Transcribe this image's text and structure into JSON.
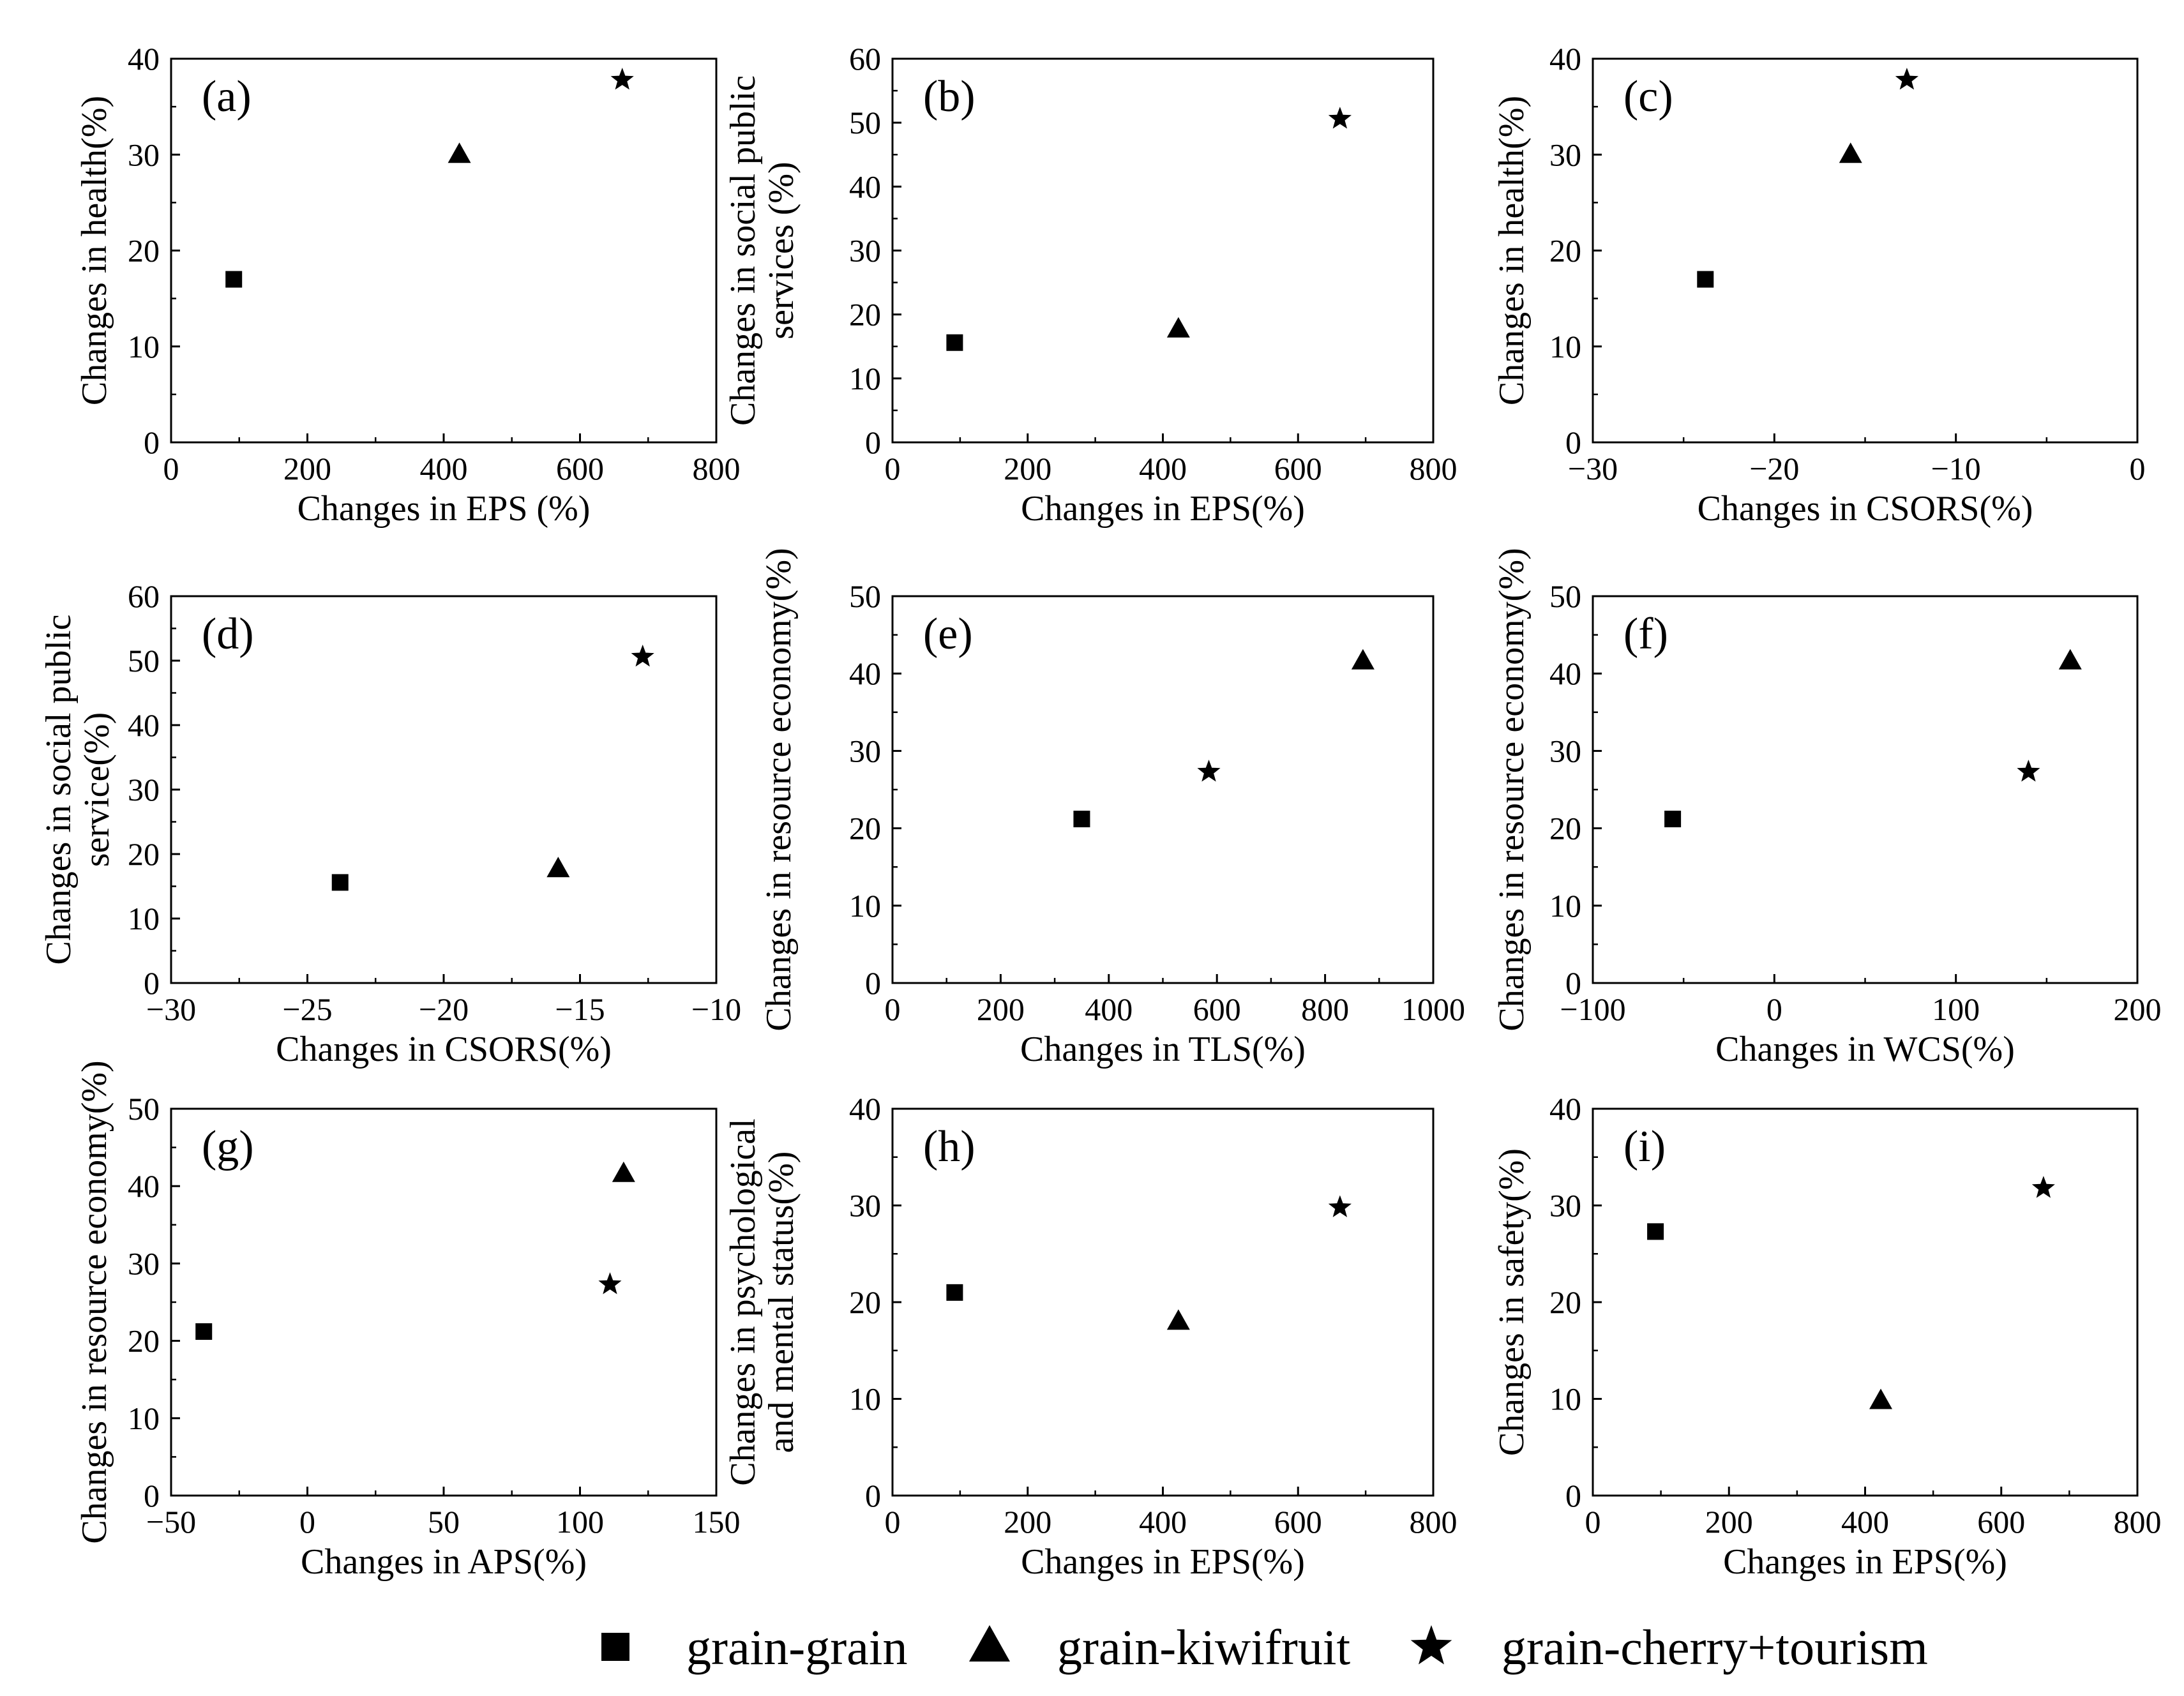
{
  "legend": {
    "items": [
      {
        "name": "grain-grain",
        "marker": "square"
      },
      {
        "name": "grain-kiwifruit",
        "marker": "triangle"
      },
      {
        "name": "grain-cherry+tourism",
        "marker": "star"
      }
    ]
  },
  "chart_data": [
    {
      "type": "scatter",
      "panel": "(a)",
      "xlabel": "Changes in EPS (%)",
      "ylabel": [
        "Changes in health(%)"
      ],
      "xlim": [
        0,
        800
      ],
      "ylim": [
        0,
        40
      ],
      "xticks": [
        0,
        200,
        400,
        600,
        800
      ],
      "xtick_labels": [
        "0",
        "200",
        "400",
        "600",
        "800"
      ],
      "yticks": [
        0,
        10,
        20,
        30,
        40
      ],
      "ytick_labels": [
        "0",
        "10",
        "20",
        "30",
        "40"
      ],
      "series": [
        {
          "name": "grain-grain",
          "marker": "square",
          "x": 92,
          "y": 17
        },
        {
          "name": "grain-kiwifruit",
          "marker": "triangle",
          "x": 423,
          "y": 30
        },
        {
          "name": "grain-cherry+tourism",
          "marker": "star",
          "x": 662,
          "y": 37.8
        }
      ]
    },
    {
      "type": "scatter",
      "panel": "(b)",
      "xlabel": "Changes in EPS(%)",
      "ylabel": [
        "Changes in social public",
        "services (%)"
      ],
      "xlim": [
        0,
        800
      ],
      "ylim": [
        0,
        60
      ],
      "xticks": [
        0,
        200,
        400,
        600,
        800
      ],
      "xtick_labels": [
        "0",
        "200",
        "400",
        "600",
        "800"
      ],
      "yticks": [
        0,
        10,
        20,
        30,
        40,
        50,
        60
      ],
      "ytick_labels": [
        "0",
        "10",
        "20",
        "30",
        "40",
        "50",
        "60"
      ],
      "series": [
        {
          "name": "grain-grain",
          "marker": "square",
          "x": 92,
          "y": 15.6
        },
        {
          "name": "grain-kiwifruit",
          "marker": "triangle",
          "x": 423,
          "y": 17.7
        },
        {
          "name": "grain-cherry+tourism",
          "marker": "star",
          "x": 662,
          "y": 50.6
        }
      ]
    },
    {
      "type": "scatter",
      "panel": "(c)",
      "xlabel": "Changes in CSORS(%)",
      "ylabel": [
        "Changes in health(%)"
      ],
      "xlim": [
        -30,
        0
      ],
      "ylim": [
        0,
        40
      ],
      "xticks": [
        -30,
        -20,
        -10,
        0
      ],
      "xtick_labels": [
        "−30",
        "−20",
        "−10",
        "0"
      ],
      "yticks": [
        0,
        10,
        20,
        30,
        40
      ],
      "ytick_labels": [
        "0",
        "10",
        "20",
        "30",
        "40"
      ],
      "series": [
        {
          "name": "grain-grain",
          "marker": "square",
          "x": -23.8,
          "y": 17
        },
        {
          "name": "grain-kiwifruit",
          "marker": "triangle",
          "x": -15.8,
          "y": 30
        },
        {
          "name": "grain-cherry+tourism",
          "marker": "star",
          "x": -12.7,
          "y": 37.8
        }
      ]
    },
    {
      "type": "scatter",
      "panel": "(d)",
      "xlabel": "Changes in CSORS(%)",
      "ylabel": [
        "Changes in social public",
        "service(%)"
      ],
      "xlim": [
        -30,
        -10
      ],
      "ylim": [
        0,
        60
      ],
      "xticks": [
        -30,
        -25,
        -20,
        -15,
        -10
      ],
      "xtick_labels": [
        "−30",
        "−25",
        "−20",
        "−15",
        "−10"
      ],
      "yticks": [
        0,
        10,
        20,
        30,
        40,
        50,
        60
      ],
      "ytick_labels": [
        "0",
        "10",
        "20",
        "30",
        "40",
        "50",
        "60"
      ],
      "series": [
        {
          "name": "grain-grain",
          "marker": "square",
          "x": -23.8,
          "y": 15.6
        },
        {
          "name": "grain-kiwifruit",
          "marker": "triangle",
          "x": -15.8,
          "y": 17.7
        },
        {
          "name": "grain-cherry+tourism",
          "marker": "star",
          "x": -12.7,
          "y": 50.6
        }
      ]
    },
    {
      "type": "scatter",
      "panel": "(e)",
      "xlabel": "Changes in TLS(%)",
      "ylabel": [
        "Changes in resource economy(%)"
      ],
      "xlim": [
        0,
        1000
      ],
      "ylim": [
        0,
        50
      ],
      "xticks": [
        0,
        200,
        400,
        600,
        800,
        1000
      ],
      "xtick_labels": [
        "0",
        "200",
        "400",
        "600",
        "800",
        "1000"
      ],
      "yticks": [
        0,
        10,
        20,
        30,
        40,
        50
      ],
      "ytick_labels": [
        "0",
        "10",
        "20",
        "30",
        "40",
        "50"
      ],
      "series": [
        {
          "name": "grain-grain",
          "marker": "square",
          "x": 350,
          "y": 21.2
        },
        {
          "name": "grain-kiwifruit",
          "marker": "triangle",
          "x": 870,
          "y": 41.6
        },
        {
          "name": "grain-cherry+tourism",
          "marker": "star",
          "x": 585,
          "y": 27.3
        }
      ]
    },
    {
      "type": "scatter",
      "panel": "(f)",
      "xlabel": "Changes in WCS(%)",
      "ylabel": [
        "Changes in resource economy(%)"
      ],
      "xlim": [
        -100,
        200
      ],
      "ylim": [
        0,
        50
      ],
      "xticks": [
        -100,
        0,
        100,
        200
      ],
      "xtick_labels": [
        "−100",
        "0",
        "100",
        "200"
      ],
      "yticks": [
        0,
        10,
        20,
        30,
        40,
        50
      ],
      "ytick_labels": [
        "0",
        "10",
        "20",
        "30",
        "40",
        "50"
      ],
      "series": [
        {
          "name": "grain-grain",
          "marker": "square",
          "x": -56,
          "y": 21.2
        },
        {
          "name": "grain-kiwifruit",
          "marker": "triangle",
          "x": 163,
          "y": 41.6
        },
        {
          "name": "grain-cherry+tourism",
          "marker": "star",
          "x": 140,
          "y": 27.3
        }
      ]
    },
    {
      "type": "scatter",
      "panel": "(g)",
      "xlabel": "Changes in APS(%)",
      "ylabel": [
        "Changes in resource economy(%)"
      ],
      "xlim": [
        -50,
        150
      ],
      "ylim": [
        0,
        50
      ],
      "xticks": [
        -50,
        0,
        50,
        100,
        150
      ],
      "xtick_labels": [
        "−50",
        "0",
        "50",
        "100",
        "150"
      ],
      "yticks": [
        0,
        10,
        20,
        30,
        40,
        50
      ],
      "ytick_labels": [
        "0",
        "10",
        "20",
        "30",
        "40",
        "50"
      ],
      "series": [
        {
          "name": "grain-grain",
          "marker": "square",
          "x": -38,
          "y": 21.2
        },
        {
          "name": "grain-kiwifruit",
          "marker": "triangle",
          "x": 116,
          "y": 41.6
        },
        {
          "name": "grain-cherry+tourism",
          "marker": "star",
          "x": 111,
          "y": 27.3
        }
      ]
    },
    {
      "type": "scatter",
      "panel": "(h)",
      "xlabel": "Changes in EPS(%)",
      "ylabel": [
        "Changes in psychological",
        "and  mental status(%)"
      ],
      "xlim": [
        0,
        800
      ],
      "ylim": [
        0,
        40
      ],
      "xticks": [
        0,
        200,
        400,
        600,
        800
      ],
      "xtick_labels": [
        "0",
        "200",
        "400",
        "600",
        "800"
      ],
      "yticks": [
        0,
        10,
        20,
        30,
        40
      ],
      "ytick_labels": [
        "0",
        "10",
        "20",
        "30",
        "40"
      ],
      "series": [
        {
          "name": "grain-grain",
          "marker": "square",
          "x": 92,
          "y": 21
        },
        {
          "name": "grain-kiwifruit",
          "marker": "triangle",
          "x": 423,
          "y": 18
        },
        {
          "name": "grain-cherry+tourism",
          "marker": "star",
          "x": 662,
          "y": 29.8
        }
      ]
    },
    {
      "type": "scatter",
      "panel": "(i)",
      "xlabel": "Changes in EPS(%)",
      "ylabel": [
        "Changes in safety(%)"
      ],
      "xlim": [
        0,
        800
      ],
      "ylim": [
        0,
        40
      ],
      "xticks": [
        0,
        200,
        400,
        600,
        800
      ],
      "xtick_labels": [
        "0",
        "200",
        "400",
        "600",
        "800"
      ],
      "yticks": [
        0,
        10,
        20,
        30,
        40
      ],
      "ytick_labels": [
        "0",
        "10",
        "20",
        "30",
        "40"
      ],
      "series": [
        {
          "name": "grain-grain",
          "marker": "square",
          "x": 92,
          "y": 27.3
        },
        {
          "name": "grain-kiwifruit",
          "marker": "triangle",
          "x": 423,
          "y": 9.8
        },
        {
          "name": "grain-cherry+tourism",
          "marker": "star",
          "x": 662,
          "y": 31.8
        }
      ]
    }
  ]
}
